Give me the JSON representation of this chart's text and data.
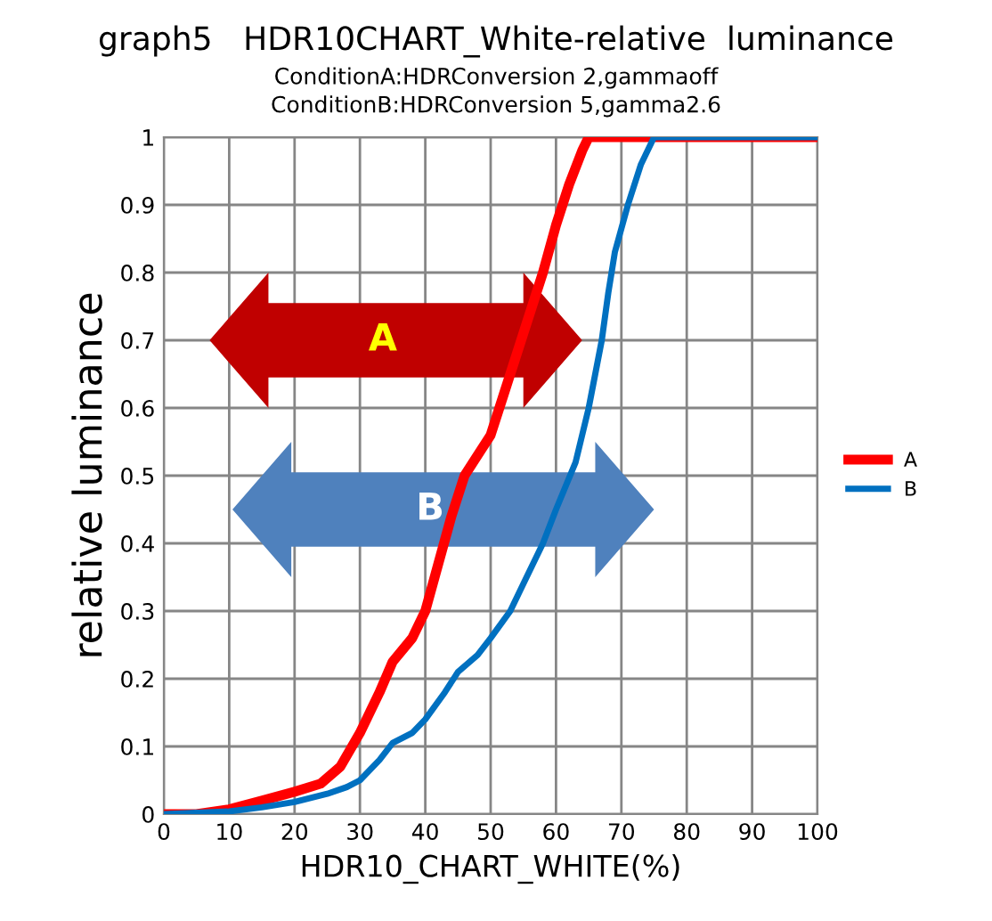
{
  "chart_data": {
    "type": "line",
    "title": "graph5   HDR10CHART_White-relative  luminance",
    "subtitle": "ConditionA:HDRConversion 2,gammaoff\nConditionB:HDRConversion 5,gamma2.6",
    "xlabel": "HDR10_CHART_WHITE(%)",
    "ylabel": "relative luminance",
    "series": [
      {
        "name": "A",
        "color": "#ff0000",
        "x": [
          0,
          5,
          10,
          15,
          20,
          24,
          27,
          30,
          33,
          35,
          38,
          40,
          42,
          44,
          46,
          50,
          52,
          55,
          58,
          60,
          62,
          64,
          65,
          80,
          100
        ],
        "values": [
          0,
          0,
          0.007,
          0.02,
          0.033,
          0.045,
          0.07,
          0.12,
          0.18,
          0.225,
          0.26,
          0.3,
          0.37,
          0.44,
          0.5,
          0.56,
          0.62,
          0.71,
          0.8,
          0.87,
          0.93,
          0.98,
          1,
          1,
          1
        ]
      },
      {
        "name": "B",
        "color": "#0070c0",
        "x": [
          0,
          10,
          15,
          20,
          25,
          28,
          30,
          33,
          35,
          38,
          40,
          43,
          45,
          48,
          50,
          53,
          55,
          58,
          60,
          63,
          65,
          67,
          68,
          69,
          71,
          73,
          75,
          100
        ],
        "values": [
          0,
          0.004,
          0.01,
          0.018,
          0.03,
          0.04,
          0.05,
          0.08,
          0.105,
          0.12,
          0.14,
          0.18,
          0.21,
          0.235,
          0.26,
          0.3,
          0.34,
          0.4,
          0.45,
          0.52,
          0.6,
          0.7,
          0.77,
          0.83,
          0.9,
          0.96,
          1,
          1
        ]
      }
    ],
    "annotations": [
      "A",
      "B"
    ],
    "xlim": [
      0,
      100
    ],
    "xticks": [
      0,
      10,
      20,
      30,
      40,
      50,
      60,
      70,
      80,
      90,
      100
    ],
    "ylim": [
      0,
      1
    ],
    "yticks": [
      0,
      0.1,
      0.2,
      0.3,
      0.4,
      0.5,
      0.6,
      0.7,
      0.8,
      0.9,
      1
    ],
    "grid": true,
    "legend": "right",
    "marker": "none",
    "line_style": "solid"
  }
}
